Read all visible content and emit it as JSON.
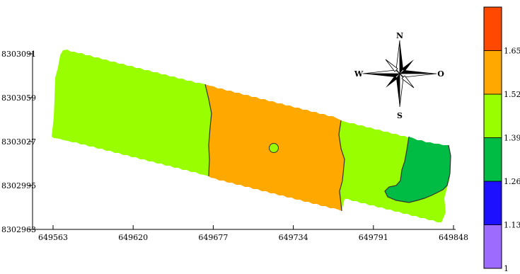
{
  "map": {
    "x_axis": {
      "ticks": [
        "649563",
        "649620",
        "649677",
        "649734",
        "649791",
        "649848"
      ]
    },
    "y_axis": {
      "ticks": [
        "8302963",
        "8302995",
        "8303027",
        "8303059",
        "8303091"
      ]
    },
    "zones": [
      {
        "class": "1.39-1.52",
        "color": "#99ff00"
      },
      {
        "class": "1.52-1.65",
        "color": "#ffa800"
      },
      {
        "class": "1.26-1.39",
        "color": "#00bb44"
      }
    ],
    "compass": {
      "n": "N",
      "s": "S",
      "w": "W",
      "e": "O"
    }
  },
  "legend": {
    "classes": [
      {
        "color": "#9d6cff"
      },
      {
        "color": "#1c10ff"
      },
      {
        "color": "#00bb44"
      },
      {
        "color": "#99ff00"
      },
      {
        "color": "#ffa800"
      },
      {
        "color": "#ff4800"
      }
    ],
    "breaks": [
      "1",
      "1.13",
      "1.26",
      "1.39",
      "1.52",
      "1.65"
    ]
  }
}
